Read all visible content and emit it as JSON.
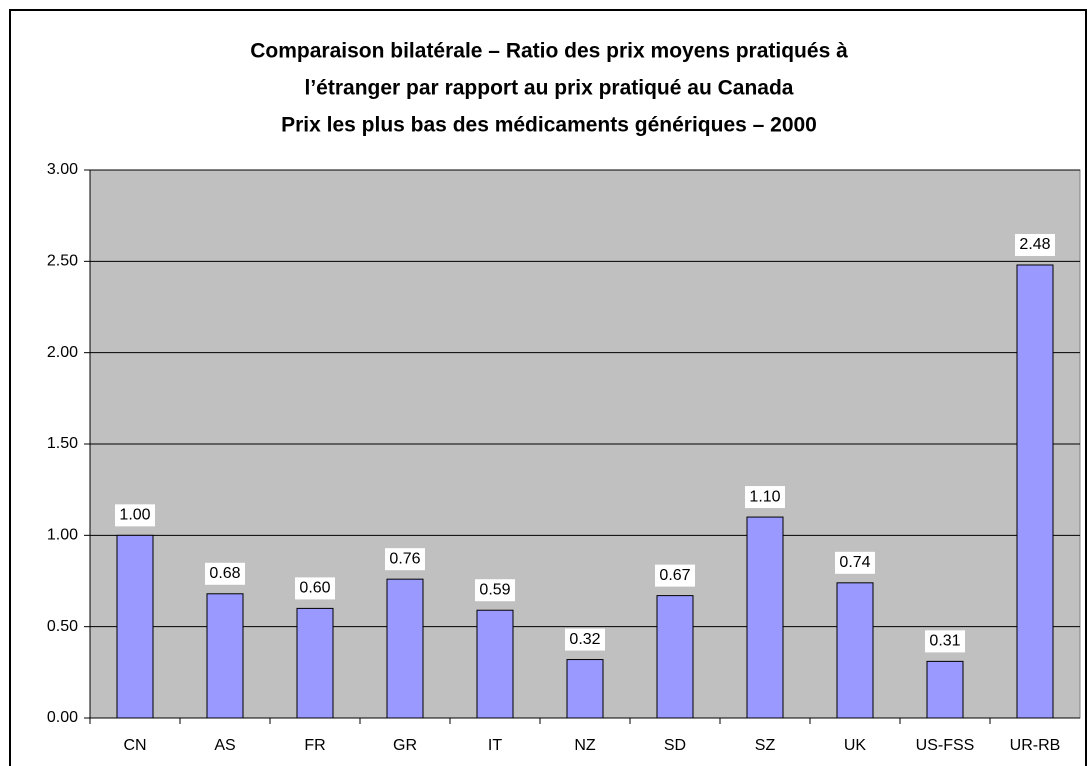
{
  "chart_data": {
    "type": "bar",
    "title": [
      "Comparaison bilatérale – Ratio des prix moyens pratiqués à",
      "l’étranger par rapport au prix pratiqué au Canada",
      "Prix les plus bas des médicaments génériques – 2000"
    ],
    "categories": [
      "CN",
      "AS",
      "FR",
      "GR",
      "IT",
      "NZ",
      "SD",
      "SZ",
      "UK",
      "US-FSS",
      "UR-RB"
    ],
    "values": [
      1.0,
      0.68,
      0.6,
      0.76,
      0.59,
      0.32,
      0.67,
      1.1,
      0.74,
      0.31,
      2.48
    ],
    "value_labels": [
      "1.00",
      "0.68",
      "0.60",
      "0.76",
      "0.59",
      "0.32",
      "0.67",
      "1.10",
      "0.74",
      "0.31",
      "2.48"
    ],
    "color": "#9999ff",
    "ylim": [
      0,
      3
    ],
    "yticks": [
      {
        "value": 0,
        "label": "0.00"
      },
      {
        "value": 0.5,
        "label": "0.50"
      },
      {
        "value": 1,
        "label": "1.00"
      },
      {
        "value": 1.5,
        "label": "1.50"
      },
      {
        "value": 2,
        "label": "2.00"
      },
      {
        "value": 2.5,
        "label": "2.50"
      },
      {
        "value": 3,
        "label": "3.00"
      }
    ],
    "grid": true
  }
}
